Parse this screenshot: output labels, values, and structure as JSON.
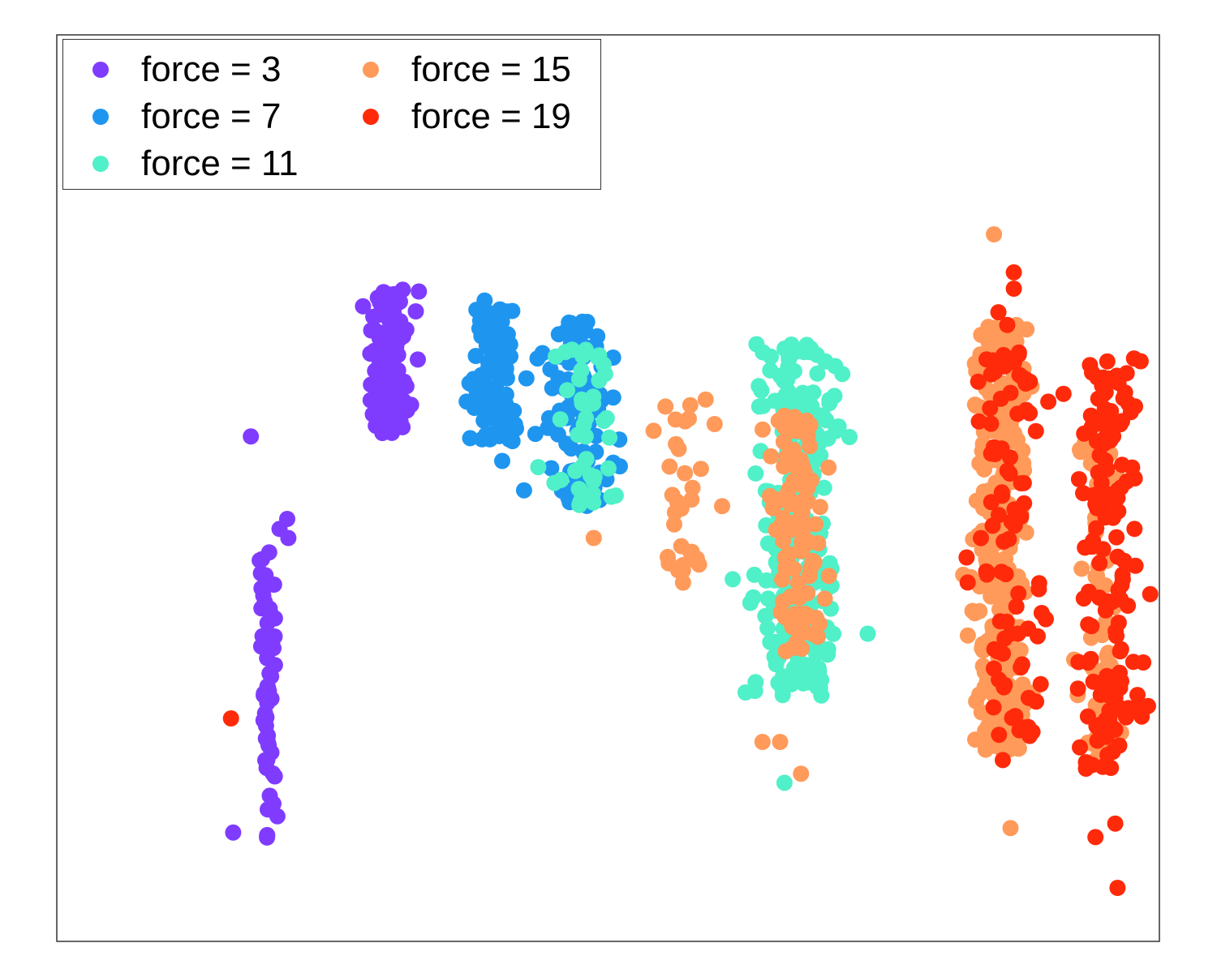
{
  "chart_data": {
    "type": "scatter",
    "title": "",
    "xlabel": "",
    "ylabel": "",
    "axes": {
      "ticks": "none",
      "grid": false
    },
    "legend": {
      "placement": "top-left",
      "columns": 2
    },
    "xlim": [
      0,
      100
    ],
    "ylim": [
      0,
      100
    ],
    "series": [
      {
        "name": "force = 3",
        "color": "#7f3cff",
        "clusters": [
          {
            "cx": 19.2,
            "sx": 0.4,
            "y_top": 43,
            "y_bottom": 11,
            "n": 60
          },
          {
            "cx": 30.2,
            "sx": 1.0,
            "y_top": 72,
            "y_bottom": 56,
            "n": 120
          }
        ],
        "points": [
          [
            16.0,
            12.0
          ],
          [
            21.0,
            44.5
          ],
          [
            20.2,
            45.5
          ],
          [
            20.9,
            46.6
          ],
          [
            17.6,
            55.7
          ]
        ]
      },
      {
        "name": "force = 7",
        "color": "#1e96f0",
        "clusters": [
          {
            "cx": 39.6,
            "sx": 1.0,
            "y_top": 70,
            "y_bottom": 55,
            "n": 100
          },
          {
            "cx": 47.8,
            "sx": 1.6,
            "y_top": 69,
            "y_bottom": 48,
            "n": 90
          }
        ],
        "points": [
          [
            40.4,
            53.0
          ],
          [
            38.8,
            70.7
          ],
          [
            43.6,
            64.3
          ],
          [
            45.3,
            64.5
          ]
        ]
      },
      {
        "name": "force = 11",
        "color": "#50f0c8",
        "clusters": [
          {
            "cx": 48.0,
            "sx": 1.3,
            "y_top": 66,
            "y_bottom": 48,
            "n": 45
          },
          {
            "cx": 67.0,
            "sx": 2.0,
            "y_top": 66,
            "y_bottom": 27,
            "n": 230
          }
        ],
        "points": [
          [
            66.0,
            17.5
          ],
          [
            67.8,
            65.0
          ],
          [
            68.3,
            65.0
          ],
          [
            64.7,
            63.0
          ]
        ]
      },
      {
        "name": "force = 15",
        "color": "#ff9a5a",
        "clusters": [
          {
            "cx": 57.0,
            "sx": 1.4,
            "y_top": 60,
            "y_bottom": 39,
            "n": 30
          },
          {
            "cx": 66.8,
            "sx": 1.2,
            "y_top": 58,
            "y_bottom": 32,
            "n": 100
          },
          {
            "cx": 85.6,
            "sx": 1.2,
            "y_top": 68,
            "y_bottom": 21,
            "n": 330
          },
          {
            "cx": 94.5,
            "sx": 1.0,
            "y_top": 55,
            "y_bottom": 20,
            "n": 60
          }
        ],
        "points": [
          [
            85.0,
            78.0
          ],
          [
            86.5,
            12.5
          ],
          [
            64.0,
            22.0
          ],
          [
            65.6,
            22.0
          ],
          [
            67.5,
            18.5
          ],
          [
            56.0,
            46.0
          ],
          [
            48.7,
            44.5
          ],
          [
            55.2,
            59.0
          ]
        ]
      },
      {
        "name": "force = 19",
        "color": "#ff2a0a",
        "clusters": [
          {
            "cx": 86.4,
            "sx": 1.6,
            "y_top": 66,
            "y_bottom": 21,
            "n": 90
          },
          {
            "cx": 95.5,
            "sx": 1.4,
            "y_top": 64,
            "y_bottom": 19,
            "n": 140
          }
        ],
        "points": [
          [
            15.8,
            24.6
          ],
          [
            86.8,
            73.8
          ],
          [
            86.8,
            72.0
          ],
          [
            85.4,
            69.4
          ],
          [
            86.2,
            68.0
          ],
          [
            97.7,
            64.3
          ],
          [
            98.3,
            64.0
          ],
          [
            94.9,
            62.2
          ],
          [
            85.8,
            20.0
          ],
          [
            94.2,
            11.5
          ],
          [
            96.2,
            5.9
          ],
          [
            96.0,
            13.0
          ],
          [
            93.8,
            58.0
          ],
          [
            95.6,
            58.5
          ]
        ]
      }
    ]
  }
}
